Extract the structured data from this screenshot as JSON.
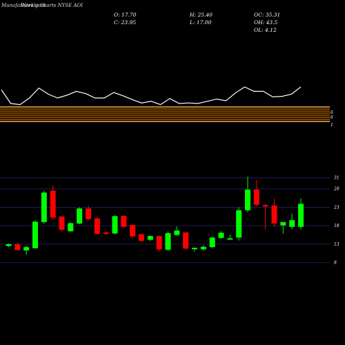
{
  "header": {
    "brand": "MunafaSutra.com",
    "title": "Weekly Charts NYSE AOI"
  },
  "ohlc": {
    "open": "O: 17.70",
    "close": "C: 23.95",
    "high": "H: 25.40",
    "low": "L: 17.00",
    "oc": "OC: 35.31",
    "oh": "OH: 43.5",
    "ol": "OL: 4.12"
  },
  "indicator": {
    "values": [
      75,
      50,
      48,
      60,
      78,
      67,
      60,
      65,
      72,
      68,
      60,
      60,
      70,
      64,
      57,
      51,
      54,
      48,
      59,
      50,
      51,
      50,
      54,
      58,
      55,
      69,
      80,
      72,
      72,
      62,
      63,
      67,
      80
    ],
    "band_labels": [
      "6",
      "6",
      "1"
    ],
    "colors": {
      "line": "#ffffff",
      "band": "#ff8c00",
      "band_bright": "#ffb040"
    }
  },
  "chart_data": {
    "type": "candlestick",
    "ylim": [
      4,
      33
    ],
    "yticks": [
      8,
      13,
      18,
      23,
      28,
      31
    ],
    "grid": true,
    "colors": {
      "up": "#00ff00",
      "down": "#ff0000",
      "flat": "#ffffff",
      "grid": "#1e1e5a"
    },
    "candles": [
      {
        "o": 12.5,
        "h": 13.2,
        "l": 12.2,
        "c": 13.0
      },
      {
        "o": 13.0,
        "h": 13.5,
        "l": 11.2,
        "c": 11.4
      },
      {
        "o": 11.3,
        "h": 12.5,
        "l": 10.1,
        "c": 12.2
      },
      {
        "o": 11.9,
        "h": 19.5,
        "l": 11.8,
        "c": 19.1
      },
      {
        "o": 19.0,
        "h": 27.5,
        "l": 18.5,
        "c": 27.0
      },
      {
        "o": 27.5,
        "h": 28.9,
        "l": 19.5,
        "c": 20.2
      },
      {
        "o": 20.5,
        "h": 20.7,
        "l": 16.4,
        "c": 16.9
      },
      {
        "o": 16.5,
        "h": 19.0,
        "l": 16.3,
        "c": 18.7
      },
      {
        "o": 18.6,
        "h": 23.0,
        "l": 18.4,
        "c": 22.7
      },
      {
        "o": 22.7,
        "h": 23.5,
        "l": 19.5,
        "c": 19.8
      },
      {
        "o": 20.0,
        "h": 20.5,
        "l": 15.5,
        "c": 15.8
      },
      {
        "o": 16.2,
        "h": 16.5,
        "l": 15.4,
        "c": 16.0
      },
      {
        "o": 15.9,
        "h": 20.9,
        "l": 15.7,
        "c": 20.6
      },
      {
        "o": 20.7,
        "h": 20.8,
        "l": 17.5,
        "c": 17.7
      },
      {
        "o": 18.2,
        "h": 18.4,
        "l": 14.7,
        "c": 15.1
      },
      {
        "o": 15.7,
        "h": 15.9,
        "l": 13.6,
        "c": 13.9
      },
      {
        "o": 14.2,
        "h": 15.4,
        "l": 13.8,
        "c": 15.2
      },
      {
        "o": 15.2,
        "h": 15.4,
        "l": 11.1,
        "c": 11.6
      },
      {
        "o": 11.5,
        "h": 16.3,
        "l": 11.2,
        "c": 16.0
      },
      {
        "o": 15.5,
        "h": 17.8,
        "l": 15.3,
        "c": 16.7
      },
      {
        "o": 16.2,
        "h": 16.3,
        "l": 11.5,
        "c": 11.8
      },
      {
        "o": 11.7,
        "h": 12.1,
        "l": 11.0,
        "c": 12.0
      },
      {
        "o": 11.6,
        "h": 12.7,
        "l": 11.3,
        "c": 12.3
      },
      {
        "o": 12.2,
        "h": 15.1,
        "l": 12.0,
        "c": 14.8
      },
      {
        "o": 14.7,
        "h": 16.5,
        "l": 14.5,
        "c": 16.1
      },
      {
        "o": 14.5,
        "h": 15.6,
        "l": 14.2,
        "c": 14.6
      },
      {
        "o": 14.8,
        "h": 23.0,
        "l": 14.0,
        "c": 22.2
      },
      {
        "o": 22.2,
        "h": 31.3,
        "l": 21.6,
        "c": 27.8
      },
      {
        "o": 27.8,
        "h": 30.4,
        "l": 23.3,
        "c": 23.7
      },
      {
        "o": 23.6,
        "h": 23.9,
        "l": 17.0,
        "c": 23.4
      },
      {
        "o": 23.5,
        "h": 25.3,
        "l": 17.7,
        "c": 18.6
      },
      {
        "o": 18.1,
        "h": 19.0,
        "l": 15.8,
        "c": 19.0
      },
      {
        "o": 17.7,
        "h": 21.3,
        "l": 17.0,
        "c": 19.5
      },
      {
        "o": 17.7,
        "h": 25.4,
        "l": 17.0,
        "c": 23.95
      }
    ]
  }
}
